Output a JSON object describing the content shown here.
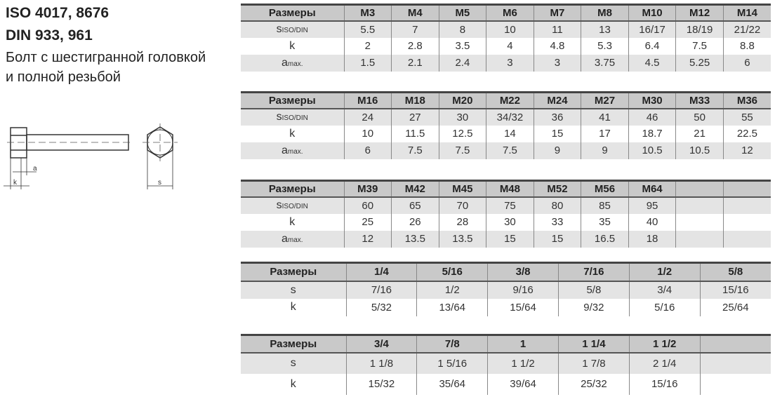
{
  "heading": {
    "line1": "ISO 4017, 8676",
    "line2": "DIN 933, 961",
    "line3": "Болт с шестигранной головкой",
    "line4": "и полной резьбой"
  },
  "drawing": {
    "label_a": "a",
    "label_k": "k",
    "label_s": "s"
  },
  "tables": [
    {
      "header": [
        "Размеры",
        "M3",
        "M4",
        "M5",
        "M6",
        "M7",
        "M8",
        "M10",
        "M12",
        "M14"
      ],
      "rows": [
        {
          "label": "s",
          "sub": "ISO/DIN",
          "values": [
            "5.5",
            "7",
            "8",
            "10",
            "11",
            "13",
            "16/17",
            "18/19",
            "21/22"
          ]
        },
        {
          "label": "k",
          "sub": "",
          "values": [
            "2",
            "2.8",
            "3.5",
            "4",
            "4.8",
            "5.3",
            "6.4",
            "7.5",
            "8.8"
          ]
        },
        {
          "label": "a",
          "sub": "max.",
          "values": [
            "1.5",
            "2.1",
            "2.4",
            "3",
            "3",
            "3.75",
            "4.5",
            "5.25",
            "6"
          ]
        }
      ]
    },
    {
      "header": [
        "Размеры",
        "M16",
        "M18",
        "M20",
        "M22",
        "M24",
        "M27",
        "M30",
        "M33",
        "M36"
      ],
      "rows": [
        {
          "label": "s",
          "sub": "ISO/DIN",
          "values": [
            "24",
            "27",
            "30",
            "34/32",
            "36",
            "41",
            "46",
            "50",
            "55"
          ]
        },
        {
          "label": "k",
          "sub": "",
          "values": [
            "10",
            "11.5",
            "12.5",
            "14",
            "15",
            "17",
            "18.7",
            "21",
            "22.5"
          ]
        },
        {
          "label": "a",
          "sub": "max.",
          "values": [
            "6",
            "7.5",
            "7.5",
            "7.5",
            "9",
            "9",
            "10.5",
            "10.5",
            "12"
          ]
        }
      ]
    },
    {
      "header": [
        "Размеры",
        "M39",
        "M42",
        "M45",
        "M48",
        "M52",
        "M56",
        "M64",
        "",
        ""
      ],
      "rows": [
        {
          "label": "s",
          "sub": "ISO/DIN",
          "values": [
            "60",
            "65",
            "70",
            "75",
            "80",
            "85",
            "95",
            "",
            ""
          ]
        },
        {
          "label": "k",
          "sub": "",
          "values": [
            "25",
            "26",
            "28",
            "30",
            "33",
            "35",
            "40",
            "",
            ""
          ]
        },
        {
          "label": "a",
          "sub": "max.",
          "values": [
            "12",
            "13.5",
            "13.5",
            "15",
            "15",
            "16.5",
            "18",
            "",
            ""
          ]
        }
      ]
    },
    {
      "header": [
        "Размеры",
        "1/4",
        "5/16",
        "3/8",
        "7/16",
        "1/2",
        "5/8"
      ],
      "rows": [
        {
          "label": "s",
          "sub": "",
          "values": [
            "7/16",
            "1/2",
            "9/16",
            "5/8",
            "3/4",
            "15/16"
          ]
        },
        {
          "label": "k",
          "sub": "",
          "values": [
            "5/32",
            "13/64",
            "15/64",
            "9/32",
            "5/16",
            "25/64"
          ]
        }
      ]
    },
    {
      "header": [
        "Размеры",
        "3/4",
        "7/8",
        "1",
        "1 1/4",
        "1 1/2",
        ""
      ],
      "rows": [
        {
          "label": "s",
          "sub": "",
          "values": [
            "1 1/8",
            "1 5/16",
            "1 1/2",
            "1 7/8",
            "2 1/4",
            ""
          ]
        },
        {
          "label": "k",
          "sub": "",
          "values": [
            "15/32",
            "35/64",
            "39/64",
            "25/32",
            "15/16",
            ""
          ]
        }
      ]
    }
  ]
}
